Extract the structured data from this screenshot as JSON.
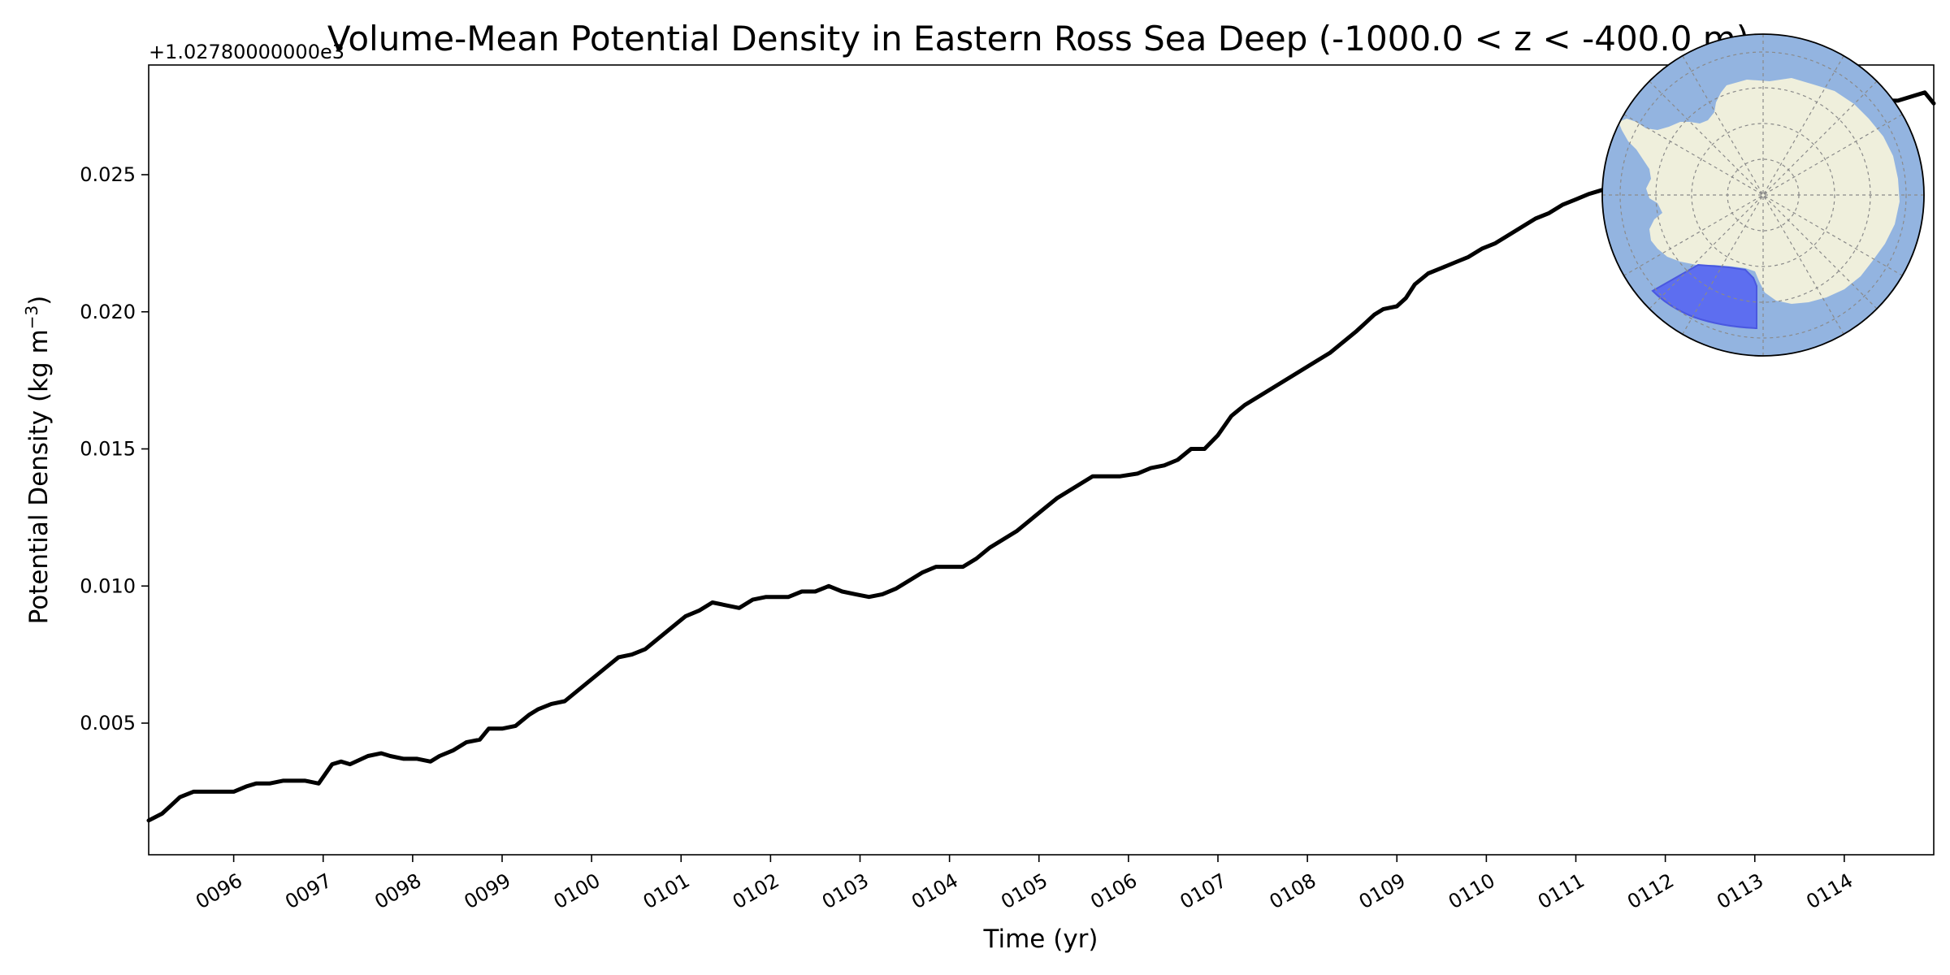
{
  "chart_data": {
    "type": "line",
    "title": "Volume-Mean Potential Density in Eastern Ross Sea Deep (-1000.0 < z < -400.0 m)",
    "xlabel": "Time (yr)",
    "ylabel": "Potential Density (kg m",
    "ylabel_superscript": "−3",
    "ylabel_suffix": ")",
    "y_offset_label": "+1.02780000000e3",
    "xlim": [
      95.05,
      115.0
    ],
    "ylim": [
      0.0002,
      0.029
    ],
    "x_ticks": [
      96,
      97,
      98,
      99,
      100,
      101,
      102,
      103,
      104,
      105,
      106,
      107,
      108,
      109,
      110,
      111,
      112,
      113,
      114
    ],
    "x_tick_labels": [
      "0096",
      "0097",
      "0098",
      "0099",
      "0100",
      "0101",
      "0102",
      "0103",
      "0104",
      "0105",
      "0106",
      "0107",
      "0108",
      "0109",
      "0110",
      "0111",
      "0112",
      "0113",
      "0114"
    ],
    "y_ticks": [
      0.005,
      0.01,
      0.015,
      0.02,
      0.025
    ],
    "y_tick_labels": [
      "0.005",
      "0.010",
      "0.015",
      "0.020",
      "0.025"
    ],
    "grid": false,
    "series": [
      {
        "color": "#000000",
        "x": [
          95.05,
          95.2,
          95.3,
          95.4,
          95.55,
          95.7,
          95.9,
          96.0,
          96.15,
          96.25,
          96.4,
          96.55,
          96.7,
          96.8,
          96.95,
          97.1,
          97.2,
          97.3,
          97.5,
          97.65,
          97.75,
          97.9,
          98.05,
          98.2,
          98.3,
          98.45,
          98.6,
          98.75,
          98.85,
          99.0,
          99.15,
          99.3,
          99.4,
          99.55,
          99.7,
          99.85,
          100.0,
          100.15,
          100.3,
          100.45,
          100.6,
          100.75,
          100.9,
          101.05,
          101.2,
          101.35,
          101.5,
          101.65,
          101.8,
          101.95,
          102.1,
          102.2,
          102.35,
          102.5,
          102.65,
          102.8,
          102.95,
          103.1,
          103.25,
          103.4,
          103.55,
          103.7,
          103.85,
          104.0,
          104.15,
          104.3,
          104.45,
          104.6,
          104.75,
          104.9,
          105.05,
          105.2,
          105.4,
          105.6,
          105.75,
          105.9,
          106.1,
          106.25,
          106.4,
          106.55,
          106.7,
          106.85,
          107.0,
          107.15,
          107.3,
          107.5,
          107.65,
          107.8,
          107.95,
          108.1,
          108.25,
          108.4,
          108.55,
          108.65,
          108.75,
          108.85,
          109.0,
          109.1,
          109.2,
          109.35,
          109.5,
          109.65,
          109.8,
          109.95,
          110.1,
          110.25,
          110.4,
          110.55,
          110.7,
          110.85,
          111.0,
          111.15,
          111.25,
          111.35,
          111.5,
          111.65,
          111.8,
          111.95,
          112.1,
          112.25,
          112.4,
          112.55,
          112.7,
          112.85,
          113.0,
          113.15,
          113.3,
          113.45,
          113.6,
          113.75,
          113.9,
          114.05,
          114.2,
          114.35,
          114.5,
          114.6,
          114.7,
          114.8,
          114.9,
          115.0
        ],
        "values": [
          0.00145,
          0.0017,
          0.002,
          0.0023,
          0.0025,
          0.0025,
          0.0025,
          0.0025,
          0.0027,
          0.0028,
          0.0028,
          0.0029,
          0.0029,
          0.0029,
          0.0028,
          0.0035,
          0.0036,
          0.0035,
          0.0038,
          0.0039,
          0.0038,
          0.0037,
          0.0037,
          0.0036,
          0.0038,
          0.004,
          0.0043,
          0.0044,
          0.0048,
          0.0048,
          0.0049,
          0.0053,
          0.0055,
          0.0057,
          0.0058,
          0.0062,
          0.0066,
          0.007,
          0.0074,
          0.0075,
          0.0077,
          0.0081,
          0.0085,
          0.0089,
          0.0091,
          0.0094,
          0.0093,
          0.0092,
          0.0095,
          0.0096,
          0.0096,
          0.0096,
          0.0098,
          0.0098,
          0.01,
          0.0098,
          0.0097,
          0.0096,
          0.0097,
          0.0099,
          0.0102,
          0.0105,
          0.0107,
          0.0107,
          0.0107,
          0.011,
          0.0114,
          0.0117,
          0.012,
          0.0124,
          0.0128,
          0.0132,
          0.0136,
          0.014,
          0.014,
          0.014,
          0.0141,
          0.0143,
          0.0144,
          0.0146,
          0.015,
          0.015,
          0.0155,
          0.0162,
          0.0166,
          0.017,
          0.0173,
          0.0176,
          0.0179,
          0.0182,
          0.0185,
          0.0189,
          0.0193,
          0.0196,
          0.0199,
          0.0201,
          0.0202,
          0.0205,
          0.021,
          0.0214,
          0.0216,
          0.0218,
          0.022,
          0.0223,
          0.0225,
          0.0228,
          0.0231,
          0.0234,
          0.0236,
          0.0239,
          0.0241,
          0.0243,
          0.0244,
          0.0245,
          0.0246,
          0.0248,
          0.025,
          0.0252,
          0.0254,
          0.0256,
          0.0258,
          0.026,
          0.0262,
          0.0264,
          0.0266,
          0.0268,
          0.0269,
          0.027,
          0.0271,
          0.0272,
          0.0273,
          0.0274,
          0.0275,
          0.0276,
          0.0277,
          0.0277,
          0.0278,
          0.0279,
          0.028,
          0.0276
        ]
      }
    ]
  },
  "inset_map": {
    "ocean_color": "#93b4e0",
    "land_color": "#efefdc",
    "region_color": "#5a6af0",
    "projection": "south-polar-stereographic"
  }
}
